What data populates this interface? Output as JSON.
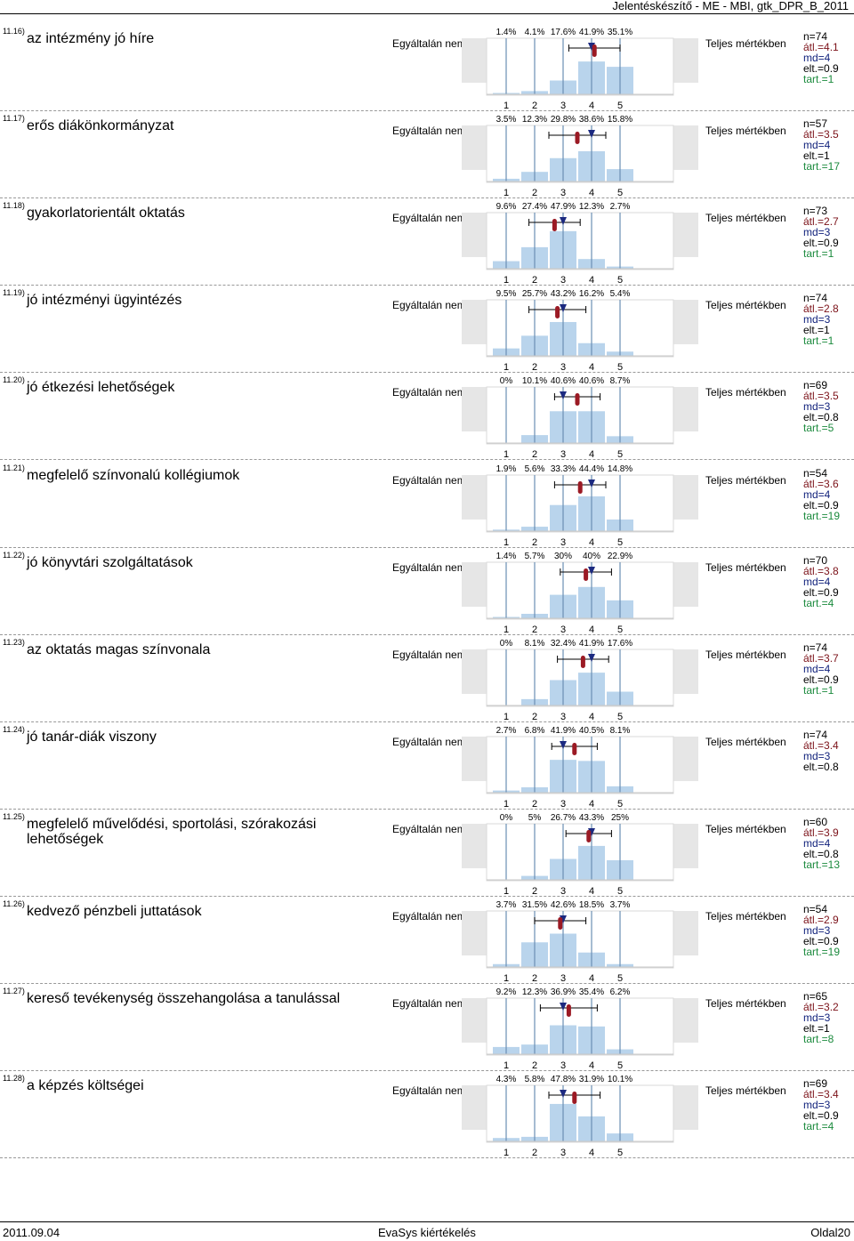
{
  "header": {
    "title": "Jelentéskészítő - ME - MBI, gtk_DPR_B_2011"
  },
  "footer": {
    "date": "2011.09.04",
    "center": "EvaSys kiértékelés",
    "page": "Oldal20"
  },
  "chart_data": {
    "type": "bar",
    "scale": [
      "1",
      "2",
      "3",
      "4",
      "5"
    ],
    "left_label": "Egyáltalán nem",
    "right_label": "Teljes mértékben",
    "colors": {
      "bar": "#b9d4ec",
      "mean": "#9b1a24",
      "median": "#1c2a80",
      "axis": "#6b8fb3",
      "bg": "#e6e6e6"
    },
    "items": [
      {
        "num": "11.16)",
        "label": "az intézmény jó híre",
        "pct_labels": [
          "1.4%",
          "4.1%",
          "17.6%",
          "41.9%",
          "35.1%"
        ],
        "pct": [
          1.4,
          4.1,
          17.6,
          41.9,
          35.1
        ],
        "mean": 4.1,
        "sd": 0.9,
        "median": 4,
        "stats": [
          "n=74",
          "átl.=4.1",
          "md=4",
          "elt.=0.9",
          "tart.=1"
        ]
      },
      {
        "num": "11.17)",
        "label": "erős diákönkormányzat",
        "pct_labels": [
          "3.5%",
          "12.3%",
          "29.8%",
          "38.6%",
          "15.8%"
        ],
        "pct": [
          3.5,
          12.3,
          29.8,
          38.6,
          15.8
        ],
        "mean": 3.5,
        "sd": 1.0,
        "median": 4,
        "stats": [
          "n=57",
          "átl.=3.5",
          "md=4",
          "elt.=1",
          "tart.=17"
        ]
      },
      {
        "num": "11.18)",
        "label": "gyakorlatorientált oktatás",
        "pct_labels": [
          "9.6%",
          "27.4%",
          "47.9%",
          "12.3%",
          "2.7%"
        ],
        "pct": [
          9.6,
          27.4,
          47.9,
          12.3,
          2.7
        ],
        "mean": 2.7,
        "sd": 0.9,
        "median": 3,
        "stats": [
          "n=73",
          "átl.=2.7",
          "md=3",
          "elt.=0.9",
          "tart.=1"
        ]
      },
      {
        "num": "11.19)",
        "label": "jó intézményi ügyintézés",
        "pct_labels": [
          "9.5%",
          "25.7%",
          "43.2%",
          "16.2%",
          "5.4%"
        ],
        "pct": [
          9.5,
          25.7,
          43.2,
          16.2,
          5.4
        ],
        "mean": 2.8,
        "sd": 1.0,
        "median": 3,
        "stats": [
          "n=74",
          "átl.=2.8",
          "md=3",
          "elt.=1",
          "tart.=1"
        ]
      },
      {
        "num": "11.20)",
        "label": "jó étkezési lehetőségek",
        "pct_labels": [
          "0%",
          "10.1%",
          "40.6%",
          "40.6%",
          "8.7%"
        ],
        "pct": [
          0,
          10.1,
          40.6,
          40.6,
          8.7
        ],
        "mean": 3.5,
        "sd": 0.8,
        "median": 3,
        "stats": [
          "n=69",
          "átl.=3.5",
          "md=3",
          "elt.=0.8",
          "tart.=5"
        ]
      },
      {
        "num": "11.21)",
        "label": "megfelelő színvonalú kollégiumok",
        "pct_labels": [
          "1.9%",
          "5.6%",
          "33.3%",
          "44.4%",
          "14.8%"
        ],
        "pct": [
          1.9,
          5.6,
          33.3,
          44.4,
          14.8
        ],
        "mean": 3.6,
        "sd": 0.9,
        "median": 4,
        "stats": [
          "n=54",
          "átl.=3.6",
          "md=4",
          "elt.=0.9",
          "tart.=19"
        ]
      },
      {
        "num": "11.22)",
        "label": "jó könyvtári szolgáltatások",
        "pct_labels": [
          "1.4%",
          "5.7%",
          "30%",
          "40%",
          "22.9%"
        ],
        "pct": [
          1.4,
          5.7,
          30,
          40,
          22.9
        ],
        "mean": 3.8,
        "sd": 0.9,
        "median": 4,
        "stats": [
          "n=70",
          "átl.=3.8",
          "md=4",
          "elt.=0.9",
          "tart.=4"
        ]
      },
      {
        "num": "11.23)",
        "label": "az oktatás magas színvonala",
        "pct_labels": [
          "0%",
          "8.1%",
          "32.4%",
          "41.9%",
          "17.6%"
        ],
        "pct": [
          0,
          8.1,
          32.4,
          41.9,
          17.6
        ],
        "mean": 3.7,
        "sd": 0.9,
        "median": 4,
        "stats": [
          "n=74",
          "átl.=3.7",
          "md=4",
          "elt.=0.9",
          "tart.=1"
        ]
      },
      {
        "num": "11.24)",
        "label": "jó tanár-diák viszony",
        "pct_labels": [
          "2.7%",
          "6.8%",
          "41.9%",
          "40.5%",
          "8.1%"
        ],
        "pct": [
          2.7,
          6.8,
          41.9,
          40.5,
          8.1
        ],
        "mean": 3.4,
        "sd": 0.8,
        "median": 3,
        "stats": [
          "n=74",
          "átl.=3.4",
          "md=3",
          "elt.=0.8"
        ]
      },
      {
        "num": "11.25)",
        "label": "megfelelő művelődési, sportolási, szórakozási lehetőségek",
        "pct_labels": [
          "0%",
          "5%",
          "26.7%",
          "43.3%",
          "25%"
        ],
        "pct": [
          0,
          5,
          26.7,
          43.3,
          25
        ],
        "mean": 3.9,
        "sd": 0.8,
        "median": 4,
        "stats": [
          "n=60",
          "átl.=3.9",
          "md=4",
          "elt.=0.8",
          "tart.=13"
        ]
      },
      {
        "num": "11.26)",
        "label": "kedvező pénzbeli juttatások",
        "pct_labels": [
          "3.7%",
          "31.5%",
          "42.6%",
          "18.5%",
          "3.7%"
        ],
        "pct": [
          3.7,
          31.5,
          42.6,
          18.5,
          3.7
        ],
        "mean": 2.9,
        "sd": 0.9,
        "median": 3,
        "stats": [
          "n=54",
          "átl.=2.9",
          "md=3",
          "elt.=0.9",
          "tart.=19"
        ]
      },
      {
        "num": "11.27)",
        "label": "kereső tevékenység összehangolása a tanulással",
        "pct_labels": [
          "9.2%",
          "12.3%",
          "36.9%",
          "35.4%",
          "6.2%"
        ],
        "pct": [
          9.2,
          12.3,
          36.9,
          35.4,
          6.2
        ],
        "mean": 3.2,
        "sd": 1.0,
        "median": 3,
        "stats": [
          "n=65",
          "átl.=3.2",
          "md=3",
          "elt.=1",
          "tart.=8"
        ]
      },
      {
        "num": "11.28)",
        "label": "a képzés költségei",
        "pct_labels": [
          "4.3%",
          "5.8%",
          "47.8%",
          "31.9%",
          "10.1%"
        ],
        "pct": [
          4.3,
          5.8,
          47.8,
          31.9,
          10.1
        ],
        "mean": 3.4,
        "sd": 0.9,
        "median": 3,
        "stats": [
          "n=69",
          "átl.=3.4",
          "md=3",
          "elt.=0.9",
          "tart.=4"
        ]
      }
    ]
  }
}
